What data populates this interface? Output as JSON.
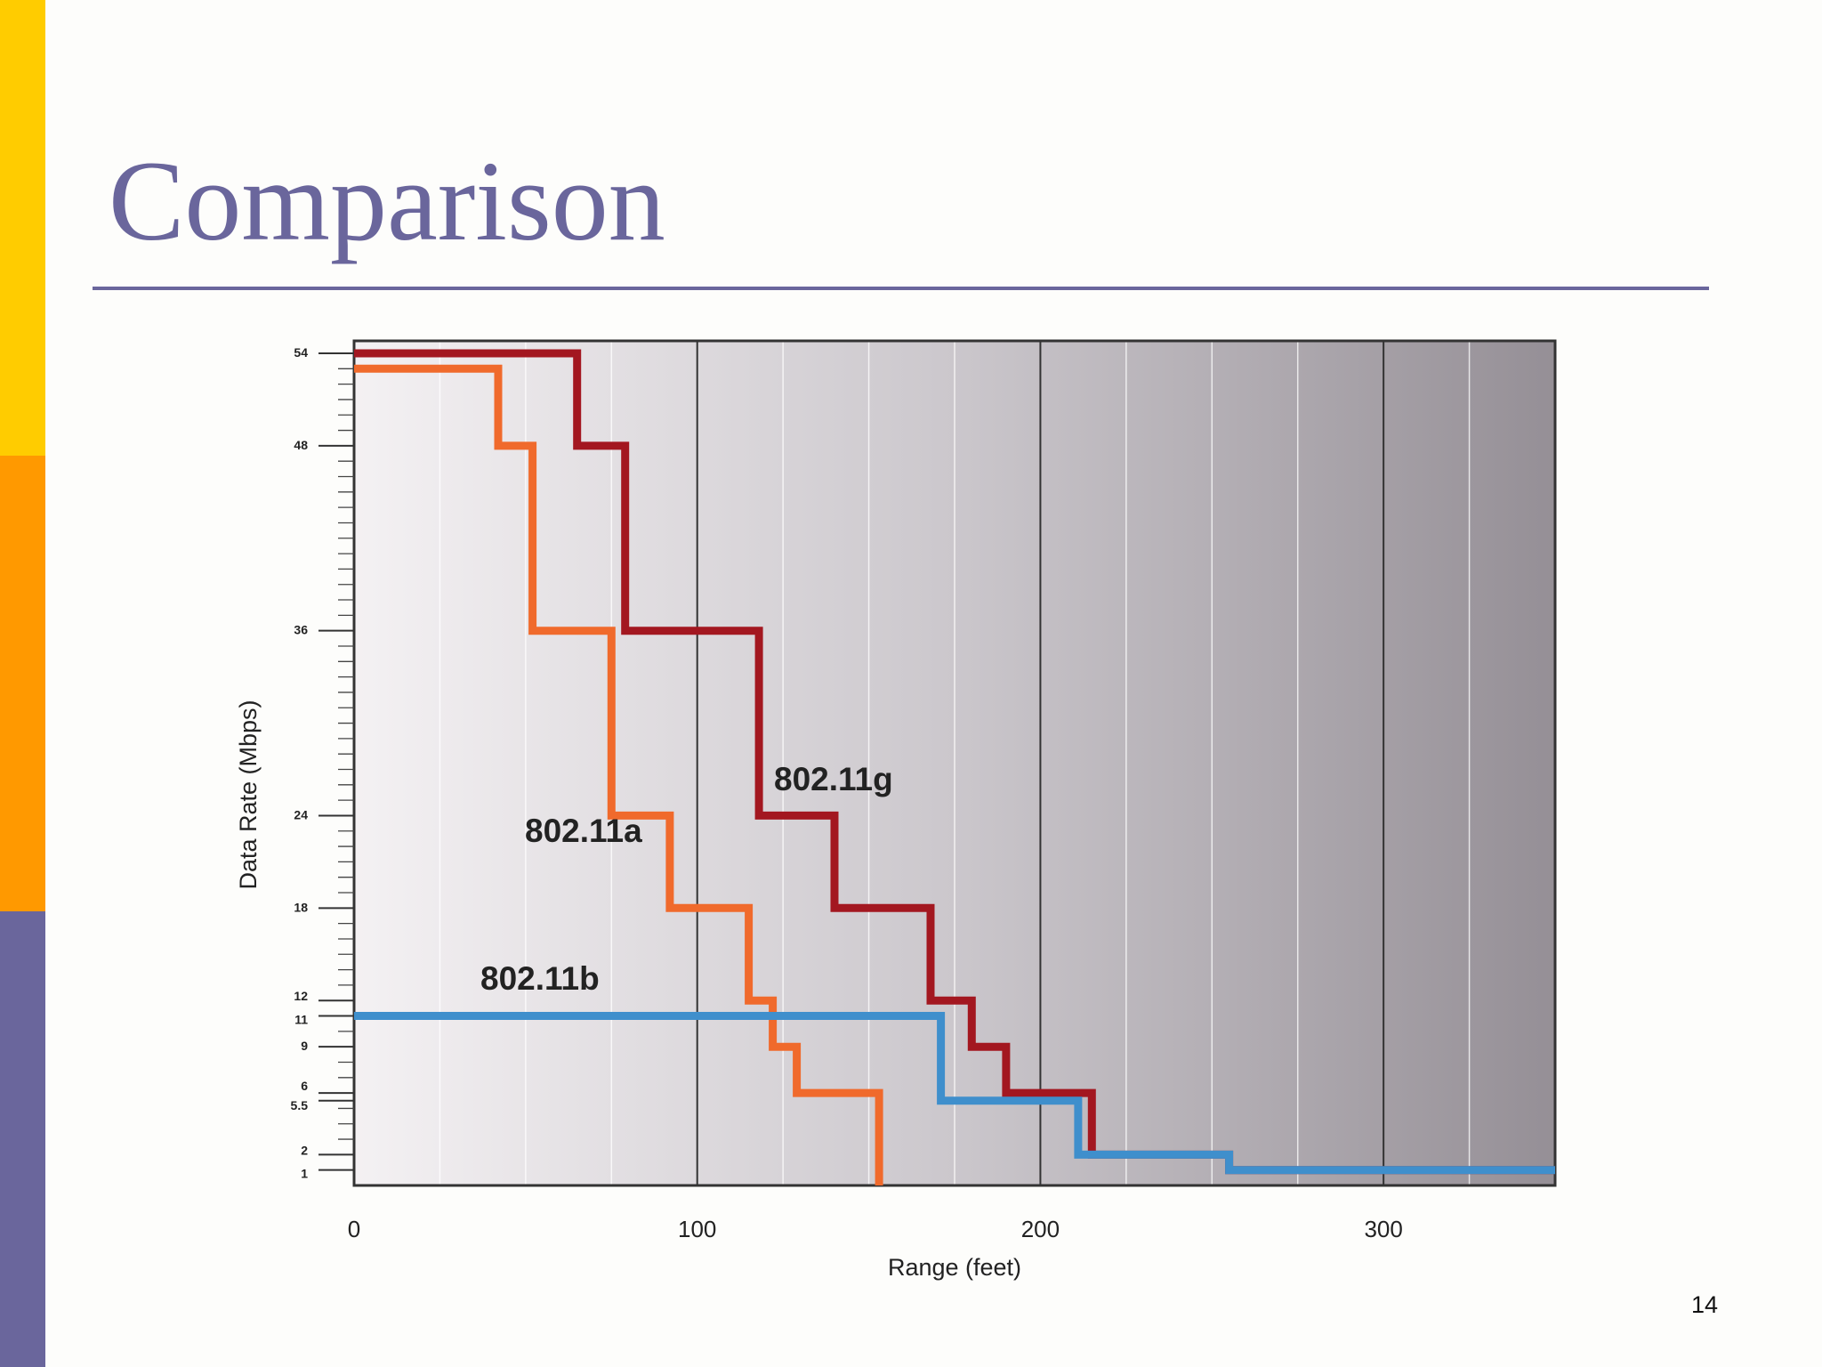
{
  "slide": {
    "title": "Comparison",
    "page_number": "14"
  },
  "colors": {
    "accent_yellow": "#ffcc00",
    "accent_orange": "#ff9900",
    "accent_purple": "#6a669c"
  },
  "chart_data": {
    "type": "line",
    "step": true,
    "title": "",
    "xlabel": "Range (feet)",
    "ylabel": "Data Rate (Mbps)",
    "xlim": [
      0,
      350
    ],
    "ylim": [
      0,
      54
    ],
    "x_ticks": [
      0,
      100,
      200,
      300
    ],
    "y_ticks": [
      1,
      2,
      5.5,
      6,
      9,
      11,
      12,
      18,
      24,
      36,
      48,
      54
    ],
    "y_tick_labels": [
      "1",
      "2",
      "5.5",
      "6",
      "9",
      "11",
      "12",
      "18",
      "24",
      "36",
      "48",
      "54"
    ],
    "grid": true,
    "series": [
      {
        "name": "802.11g",
        "color": "#a31720",
        "points": [
          [
            0,
            54
          ],
          [
            65,
            54
          ],
          [
            65,
            48
          ],
          [
            79,
            48
          ],
          [
            79,
            36
          ],
          [
            118,
            36
          ],
          [
            118,
            24
          ],
          [
            140,
            24
          ],
          [
            140,
            18
          ],
          [
            168,
            18
          ],
          [
            168,
            12
          ],
          [
            180,
            12
          ],
          [
            180,
            9
          ],
          [
            190,
            9
          ],
          [
            190,
            6
          ],
          [
            215,
            6
          ],
          [
            215,
            2
          ],
          [
            255,
            2
          ],
          [
            255,
            1
          ],
          [
            350,
            1
          ]
        ]
      },
      {
        "name": "802.11a",
        "color": "#f06a2c",
        "points": [
          [
            0,
            53
          ],
          [
            42,
            53
          ],
          [
            42,
            48
          ],
          [
            52,
            48
          ],
          [
            52,
            36
          ],
          [
            75,
            36
          ],
          [
            75,
            24
          ],
          [
            92,
            24
          ],
          [
            92,
            18
          ],
          [
            115,
            18
          ],
          [
            115,
            12
          ],
          [
            122,
            12
          ],
          [
            122,
            9
          ],
          [
            129,
            9
          ],
          [
            129,
            6
          ],
          [
            153,
            6
          ],
          [
            153,
            0
          ]
        ]
      },
      {
        "name": "802.11b",
        "color": "#3f8fcc",
        "points": [
          [
            0,
            11
          ],
          [
            171,
            11
          ],
          [
            171,
            5.5
          ],
          [
            211,
            5.5
          ],
          [
            211,
            2
          ],
          [
            255,
            2
          ],
          [
            255,
            1
          ],
          [
            350,
            1
          ]
        ]
      }
    ]
  }
}
